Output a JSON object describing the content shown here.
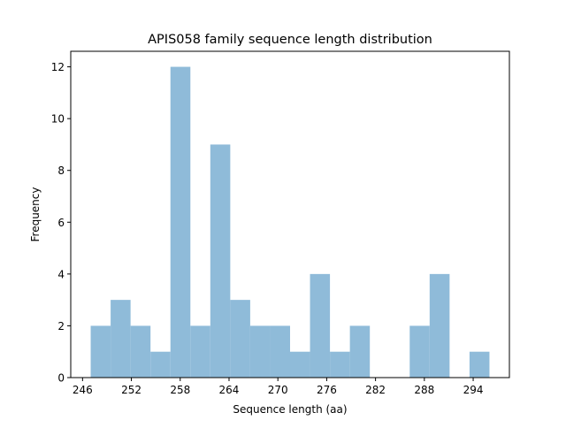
{
  "chart_data": {
    "type": "bar",
    "subtype": "histogram",
    "title": "APIS058 family sequence length distribution",
    "xlabel": "Sequence length (aa)",
    "ylabel": "Frequency",
    "bin_range": [
      247,
      296
    ],
    "bin_count": 20,
    "values": [
      2,
      3,
      2,
      1,
      12,
      2,
      9,
      3,
      2,
      2,
      1,
      4,
      1,
      2,
      0,
      0,
      2,
      4,
      0,
      1
    ],
    "xlim": [
      244.55,
      298.45
    ],
    "ylim": [
      0,
      12.6
    ],
    "xticks": [
      246,
      252,
      258,
      264,
      270,
      276,
      282,
      288,
      294
    ],
    "yticks": [
      0,
      2,
      4,
      6,
      8,
      10,
      12
    ],
    "grid": false,
    "bar_color": "#8fbbd9"
  }
}
